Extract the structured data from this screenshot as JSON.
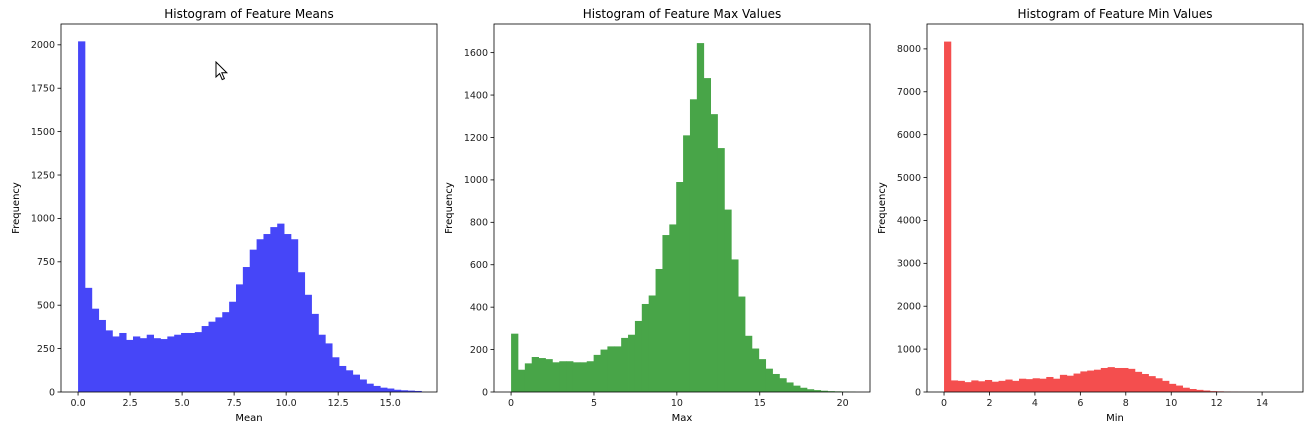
{
  "colors": {
    "means": "#4646f8",
    "max": "#48a548",
    "min": "#f44e4e"
  },
  "chart_data": [
    {
      "type": "bar",
      "title": "Histogram of Feature Means",
      "xlabel": "Mean",
      "ylabel": "Frequency",
      "color": "#4646f8",
      "xlim": [
        -0.82,
        17.25
      ],
      "ylim": [
        0,
        2120
      ],
      "xticks": [
        0,
        2.5,
        5,
        7.5,
        10,
        12.5,
        15
      ],
      "xtick_labels": [
        "0.0",
        "2.5",
        "5.0",
        "7.5",
        "10.0",
        "12.5",
        "15.0"
      ],
      "yticks": [
        0,
        250,
        500,
        750,
        1000,
        1250,
        1500,
        1750,
        2000
      ],
      "bins": {
        "start": 0,
        "width": 0.33
      },
      "values": [
        2020,
        600,
        480,
        415,
        355,
        320,
        340,
        300,
        320,
        310,
        330,
        310,
        305,
        320,
        330,
        340,
        340,
        345,
        380,
        405,
        430,
        460,
        520,
        620,
        720,
        820,
        880,
        910,
        950,
        970,
        910,
        880,
        690,
        560,
        450,
        330,
        280,
        200,
        150,
        125,
        100,
        72,
        48,
        35,
        25,
        20,
        13,
        10,
        8,
        6
      ]
    },
    {
      "type": "bar",
      "title": "Histogram of Feature Max Values",
      "xlabel": "Max",
      "ylabel": "Frequency",
      "color": "#48a548",
      "xlim": [
        -1.03,
        21.65
      ],
      "ylim": [
        0,
        1735
      ],
      "xticks": [
        0,
        5,
        10,
        15,
        20
      ],
      "xtick_labels": [
        "0",
        "5",
        "10",
        "15",
        "20"
      ],
      "yticks": [
        0,
        200,
        400,
        600,
        800,
        1000,
        1200,
        1400,
        1600
      ],
      "bins": {
        "start": 0,
        "width": 0.415
      },
      "values": [
        275,
        105,
        135,
        165,
        160,
        155,
        140,
        145,
        145,
        140,
        140,
        145,
        175,
        200,
        215,
        215,
        255,
        270,
        335,
        415,
        455,
        580,
        740,
        790,
        990,
        1210,
        1380,
        1645,
        1480,
        1310,
        1150,
        860,
        625,
        450,
        265,
        205,
        155,
        110,
        85,
        65,
        45,
        30,
        20,
        13,
        9,
        6,
        4,
        3,
        2,
        1
      ]
    },
    {
      "type": "bar",
      "title": "Histogram of Feature Min Values",
      "xlabel": "Min",
      "ylabel": "Frequency",
      "color": "#f44e4e",
      "xlim": [
        -0.75,
        15.8
      ],
      "ylim": [
        0,
        8580
      ],
      "xticks": [
        0,
        2,
        4,
        6,
        8,
        10,
        12,
        14
      ],
      "xtick_labels": [
        "0",
        "2",
        "4",
        "6",
        "8",
        "10",
        "12",
        "14"
      ],
      "yticks": [
        0,
        1000,
        2000,
        3000,
        4000,
        5000,
        6000,
        7000,
        8000
      ],
      "bins": {
        "start": 0,
        "width": 0.3
      },
      "values": [
        8170,
        270,
        260,
        230,
        270,
        250,
        280,
        240,
        260,
        290,
        260,
        310,
        300,
        320,
        310,
        350,
        310,
        400,
        380,
        430,
        480,
        500,
        520,
        560,
        580,
        560,
        560,
        540,
        470,
        420,
        370,
        320,
        260,
        190,
        150,
        100,
        70,
        50,
        35,
        20,
        15,
        10,
        6,
        4,
        3,
        2,
        2,
        1,
        1,
        1
      ]
    }
  ]
}
